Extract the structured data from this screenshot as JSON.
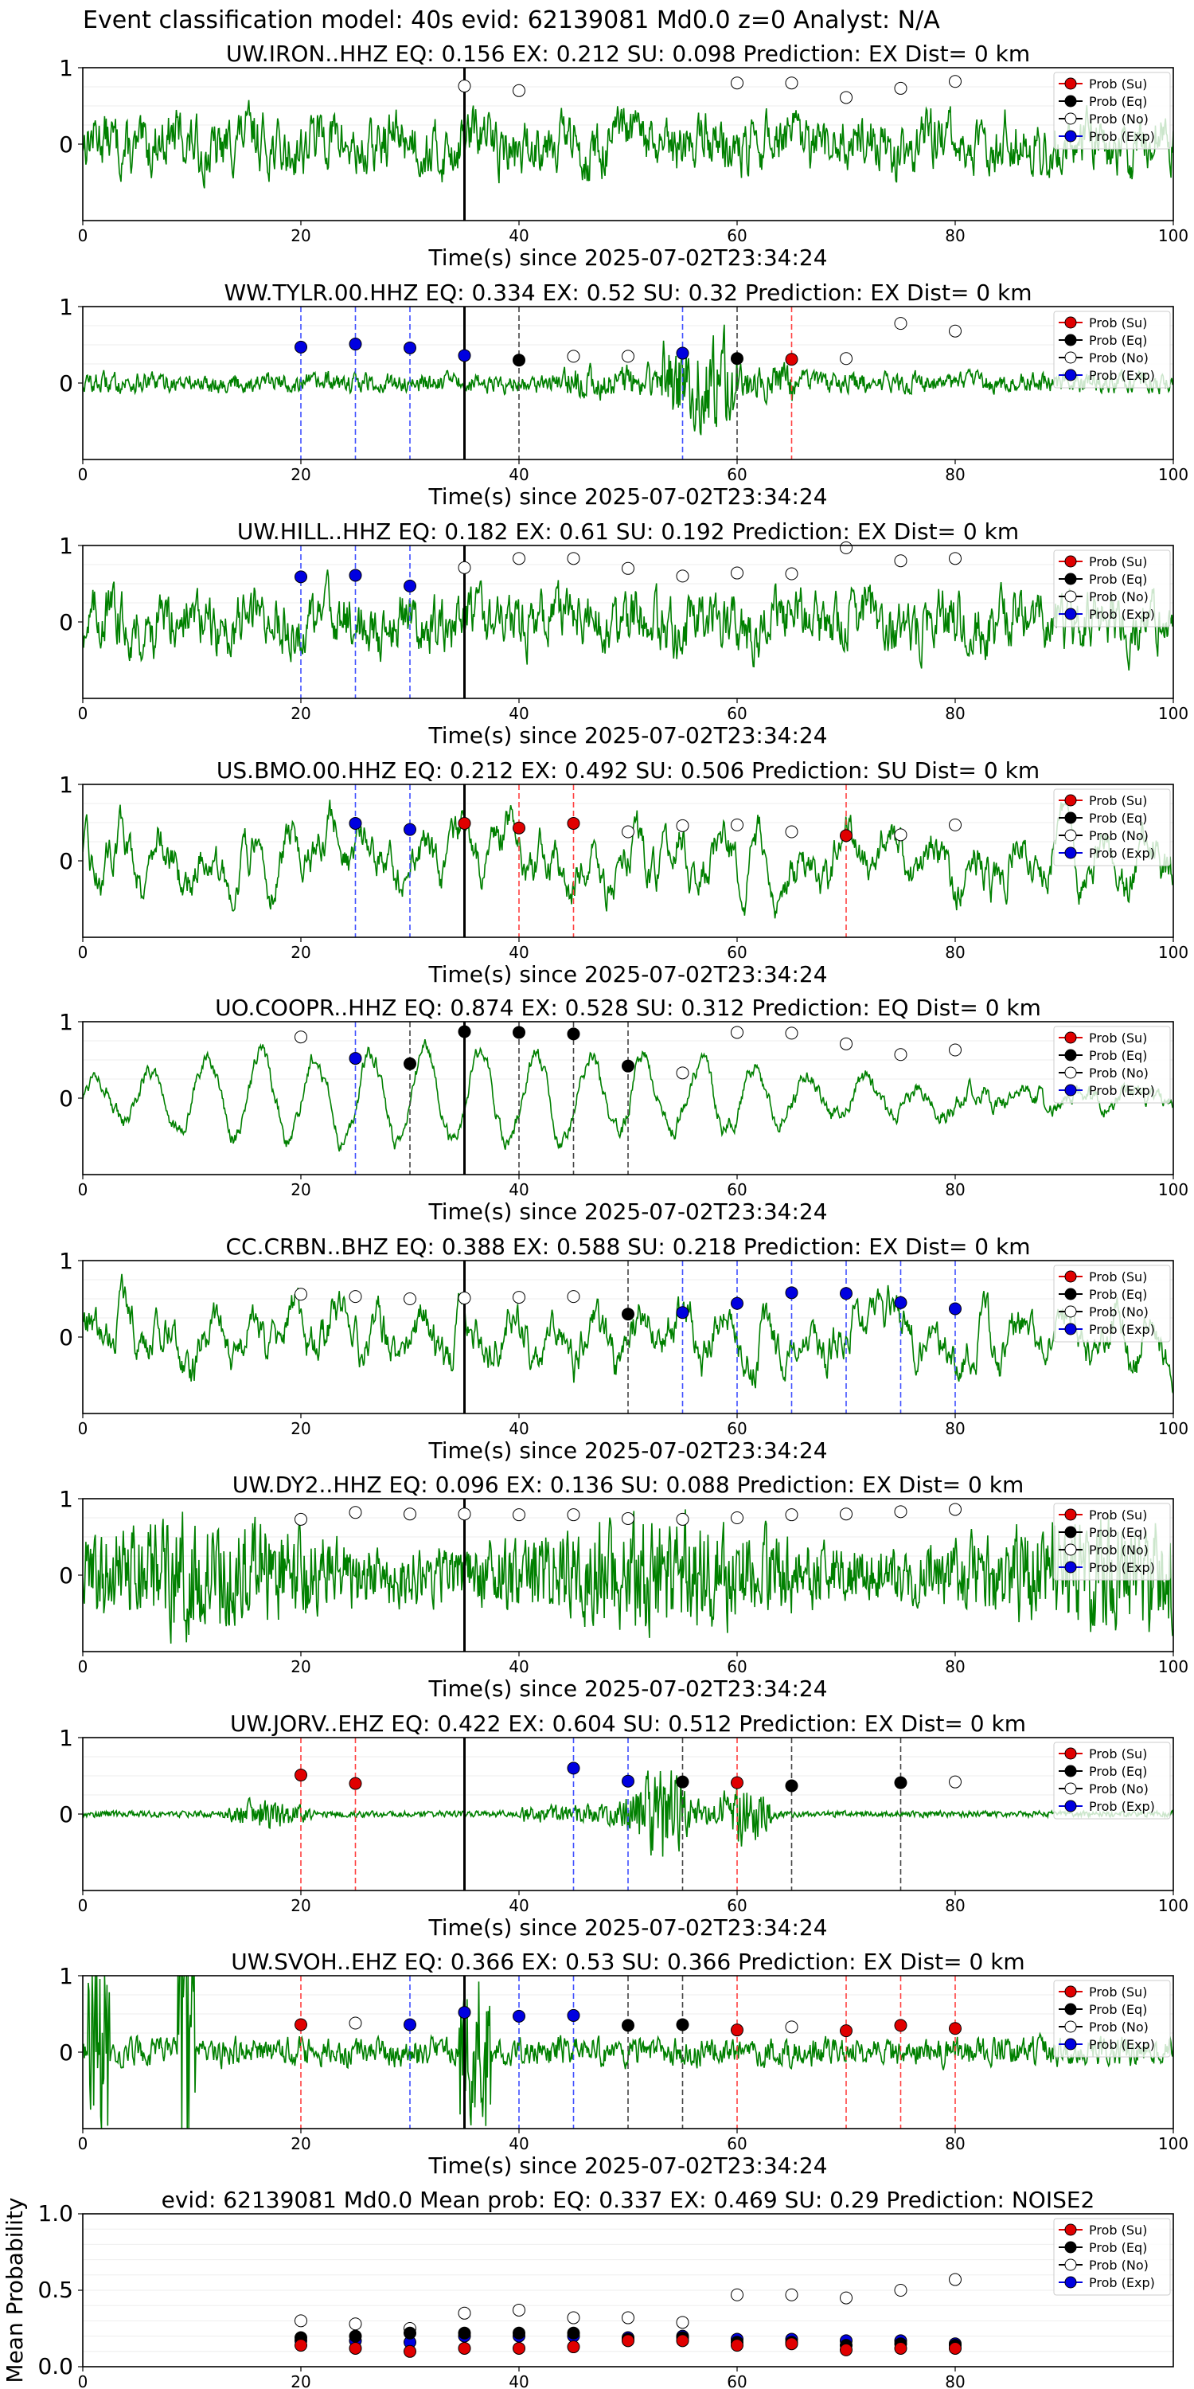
{
  "header": {
    "title": "Event classification model: 40s evid: 62139081 Md0.0 z=0 Analyst: N/A"
  },
  "colors": {
    "trace": "#008000",
    "su": "#e00000",
    "eq": "#000000",
    "no": "#ffffff",
    "exp": "#0000e0",
    "spine": "#000000"
  },
  "legend_labels": [
    "Prob (Su)",
    "Prob (Eq)",
    "Prob (No)",
    "Prob (Exp)"
  ],
  "chart_data": [
    {
      "type": "line",
      "title": "UW.IRON..HHZ   EQ: 0.156  EX: 0.212  SU: 0.098   Prediction: EX    Dist= 0 km",
      "xlabel": "Time(s) since 2025-07-02T23:34:24",
      "ylabel": "",
      "xlim": [
        0,
        100
      ],
      "ylim": [
        -1,
        1
      ],
      "x_ticks": [
        "0",
        "20",
        "40",
        "60",
        "80",
        "100"
      ],
      "y_ticks": [
        "0",
        "1"
      ],
      "legend_position": "top-right",
      "grid": "horizontal",
      "event_line": 35,
      "waveform_style": "noisy",
      "points": [
        {
          "t": 35,
          "cls": "no",
          "y": 0.76
        },
        {
          "t": 40,
          "cls": "no",
          "y": 0.7
        },
        {
          "t": 60,
          "cls": "no",
          "y": 0.8
        },
        {
          "t": 65,
          "cls": "no",
          "y": 0.8
        },
        {
          "t": 70,
          "cls": "no",
          "y": 0.61
        },
        {
          "t": 75,
          "cls": "no",
          "y": 0.73
        },
        {
          "t": 80,
          "cls": "no",
          "y": 0.82
        }
      ]
    },
    {
      "type": "line",
      "title": "WW.TYLR.00.HHZ   EQ: 0.334  EX: 0.52  SU: 0.32   Prediction: EX    Dist= 0 km",
      "xlabel": "Time(s) since 2025-07-02T23:34:24",
      "ylabel": "",
      "xlim": [
        0,
        100
      ],
      "ylim": [
        -1,
        1
      ],
      "x_ticks": [
        "0",
        "20",
        "40",
        "60",
        "80",
        "100"
      ],
      "y_ticks": [
        "0",
        "1"
      ],
      "legend_position": "top-right",
      "grid": "horizontal",
      "event_line": 35,
      "waveform_style": "burst",
      "points": [
        {
          "t": 20,
          "cls": "exp",
          "y": 0.47
        },
        {
          "t": 25,
          "cls": "exp",
          "y": 0.51
        },
        {
          "t": 30,
          "cls": "exp",
          "y": 0.46
        },
        {
          "t": 35,
          "cls": "exp",
          "y": 0.36
        },
        {
          "t": 40,
          "cls": "eq",
          "y": 0.3
        },
        {
          "t": 45,
          "cls": "no",
          "y": 0.35
        },
        {
          "t": 50,
          "cls": "no",
          "y": 0.35
        },
        {
          "t": 55,
          "cls": "exp",
          "y": 0.39
        },
        {
          "t": 60,
          "cls": "eq",
          "y": 0.32
        },
        {
          "t": 65,
          "cls": "su",
          "y": 0.31
        },
        {
          "t": 70,
          "cls": "no",
          "y": 0.32
        },
        {
          "t": 75,
          "cls": "no",
          "y": 0.78
        },
        {
          "t": 80,
          "cls": "no",
          "y": 0.68
        }
      ]
    },
    {
      "type": "line",
      "title": "UW.HILL..HHZ   EQ: 0.182  EX: 0.61  SU: 0.192   Prediction: EX    Dist= 0 km",
      "xlabel": "Time(s) since 2025-07-02T23:34:24",
      "ylabel": "",
      "xlim": [
        0,
        100
      ],
      "ylim": [
        -1,
        1
      ],
      "x_ticks": [
        "0",
        "20",
        "40",
        "60",
        "80",
        "100"
      ],
      "y_ticks": [
        "0",
        "1"
      ],
      "legend_position": "top-right",
      "grid": "horizontal",
      "event_line": 35,
      "waveform_style": "noisy",
      "points": [
        {
          "t": 20,
          "cls": "exp",
          "y": 0.59
        },
        {
          "t": 25,
          "cls": "exp",
          "y": 0.61
        },
        {
          "t": 30,
          "cls": "exp",
          "y": 0.47
        },
        {
          "t": 35,
          "cls": "no",
          "y": 0.71
        },
        {
          "t": 40,
          "cls": "no",
          "y": 0.83
        },
        {
          "t": 45,
          "cls": "no",
          "y": 0.83
        },
        {
          "t": 50,
          "cls": "no",
          "y": 0.7
        },
        {
          "t": 55,
          "cls": "no",
          "y": 0.6
        },
        {
          "t": 60,
          "cls": "no",
          "y": 0.64
        },
        {
          "t": 65,
          "cls": "no",
          "y": 0.63
        },
        {
          "t": 70,
          "cls": "no",
          "y": 0.97
        },
        {
          "t": 75,
          "cls": "no",
          "y": 0.8
        },
        {
          "t": 80,
          "cls": "no",
          "y": 0.83
        }
      ]
    },
    {
      "type": "line",
      "title": "US.BMO.00.HHZ   EQ: 0.212  EX: 0.492  SU: 0.506   Prediction: SU    Dist= 0 km",
      "xlabel": "Time(s) since 2025-07-02T23:34:24",
      "ylabel": "",
      "xlim": [
        0,
        100
      ],
      "ylim": [
        -1,
        1
      ],
      "x_ticks": [
        "0",
        "20",
        "40",
        "60",
        "80",
        "100"
      ],
      "y_ticks": [
        "0",
        "1"
      ],
      "legend_position": "top-right",
      "grid": "horizontal",
      "event_line": 35,
      "waveform_style": "wavy",
      "points": [
        {
          "t": 25,
          "cls": "exp",
          "y": 0.49
        },
        {
          "t": 30,
          "cls": "exp",
          "y": 0.41
        },
        {
          "t": 35,
          "cls": "su",
          "y": 0.49
        },
        {
          "t": 40,
          "cls": "su",
          "y": 0.43
        },
        {
          "t": 45,
          "cls": "su",
          "y": 0.49
        },
        {
          "t": 50,
          "cls": "no",
          "y": 0.38
        },
        {
          "t": 55,
          "cls": "no",
          "y": 0.46
        },
        {
          "t": 60,
          "cls": "no",
          "y": 0.47
        },
        {
          "t": 65,
          "cls": "no",
          "y": 0.38
        },
        {
          "t": 70,
          "cls": "su",
          "y": 0.33
        },
        {
          "t": 75,
          "cls": "no",
          "y": 0.34
        },
        {
          "t": 80,
          "cls": "no",
          "y": 0.47
        }
      ]
    },
    {
      "type": "line",
      "title": "UO.COOPR..HHZ   EQ: 0.874  EX: 0.528  SU: 0.312   Prediction: EQ    Dist= 0 km",
      "xlabel": "Time(s) since 2025-07-02T23:34:24",
      "ylabel": "",
      "xlim": [
        0,
        100
      ],
      "ylim": [
        -1,
        1
      ],
      "x_ticks": [
        "0",
        "20",
        "40",
        "60",
        "80",
        "100"
      ],
      "y_ticks": [
        "0",
        "1"
      ],
      "legend_position": "top-right",
      "grid": "horizontal",
      "event_line": 35,
      "waveform_style": "oscillating",
      "points": [
        {
          "t": 20,
          "cls": "no",
          "y": 0.8
        },
        {
          "t": 25,
          "cls": "exp",
          "y": 0.52
        },
        {
          "t": 30,
          "cls": "eq",
          "y": 0.45
        },
        {
          "t": 35,
          "cls": "eq",
          "y": 0.87
        },
        {
          "t": 40,
          "cls": "eq",
          "y": 0.86
        },
        {
          "t": 45,
          "cls": "eq",
          "y": 0.84
        },
        {
          "t": 50,
          "cls": "eq",
          "y": 0.42
        },
        {
          "t": 55,
          "cls": "no",
          "y": 0.33
        },
        {
          "t": 60,
          "cls": "no",
          "y": 0.86
        },
        {
          "t": 65,
          "cls": "no",
          "y": 0.85
        },
        {
          "t": 70,
          "cls": "no",
          "y": 0.71
        },
        {
          "t": 75,
          "cls": "no",
          "y": 0.57
        },
        {
          "t": 80,
          "cls": "no",
          "y": 0.63
        }
      ]
    },
    {
      "type": "line",
      "title": "CC.CRBN..BHZ   EQ: 0.388  EX: 0.588  SU: 0.218   Prediction: EX    Dist= 0 km",
      "xlabel": "Time(s) since 2025-07-02T23:34:24",
      "ylabel": "",
      "xlim": [
        0,
        100
      ],
      "ylim": [
        -1,
        1
      ],
      "x_ticks": [
        "0",
        "20",
        "40",
        "60",
        "80",
        "100"
      ],
      "y_ticks": [
        "0",
        "1"
      ],
      "legend_position": "top-right",
      "grid": "horizontal",
      "event_line": 35,
      "waveform_style": "wavy",
      "points": [
        {
          "t": 20,
          "cls": "no",
          "y": 0.56
        },
        {
          "t": 25,
          "cls": "no",
          "y": 0.53
        },
        {
          "t": 30,
          "cls": "no",
          "y": 0.5
        },
        {
          "t": 35,
          "cls": "no",
          "y": 0.51
        },
        {
          "t": 40,
          "cls": "no",
          "y": 0.52
        },
        {
          "t": 45,
          "cls": "no",
          "y": 0.53
        },
        {
          "t": 50,
          "cls": "eq",
          "y": 0.3
        },
        {
          "t": 55,
          "cls": "exp",
          "y": 0.32
        },
        {
          "t": 60,
          "cls": "exp",
          "y": 0.44
        },
        {
          "t": 65,
          "cls": "exp",
          "y": 0.58
        },
        {
          "t": 70,
          "cls": "exp",
          "y": 0.57
        },
        {
          "t": 75,
          "cls": "exp",
          "y": 0.45
        },
        {
          "t": 80,
          "cls": "exp",
          "y": 0.37
        }
      ]
    },
    {
      "type": "line",
      "title": "UW.DY2..HHZ   EQ: 0.096  EX: 0.136  SU: 0.088   Prediction: EX    Dist= 0 km",
      "xlabel": "Time(s) since 2025-07-02T23:34:24",
      "ylabel": "",
      "xlim": [
        0,
        100
      ],
      "ylim": [
        -1,
        1
      ],
      "x_ticks": [
        "0",
        "20",
        "40",
        "60",
        "80",
        "100"
      ],
      "y_ticks": [
        "0",
        "1"
      ],
      "legend_position": "top-right",
      "grid": "horizontal",
      "event_line": 35,
      "waveform_style": "dense",
      "points": [
        {
          "t": 20,
          "cls": "no",
          "y": 0.73
        },
        {
          "t": 25,
          "cls": "no",
          "y": 0.82
        },
        {
          "t": 30,
          "cls": "no",
          "y": 0.8
        },
        {
          "t": 35,
          "cls": "no",
          "y": 0.8
        },
        {
          "t": 40,
          "cls": "no",
          "y": 0.79
        },
        {
          "t": 45,
          "cls": "no",
          "y": 0.79
        },
        {
          "t": 50,
          "cls": "no",
          "y": 0.74
        },
        {
          "t": 55,
          "cls": "no",
          "y": 0.73
        },
        {
          "t": 60,
          "cls": "no",
          "y": 0.75
        },
        {
          "t": 65,
          "cls": "no",
          "y": 0.79
        },
        {
          "t": 70,
          "cls": "no",
          "y": 0.8
        },
        {
          "t": 75,
          "cls": "no",
          "y": 0.83
        },
        {
          "t": 80,
          "cls": "no",
          "y": 0.86
        }
      ]
    },
    {
      "type": "line",
      "title": "UW.JORV..EHZ   EQ: 0.422  EX: 0.604  SU: 0.512   Prediction: EX    Dist= 0 km",
      "xlabel": "Time(s) since 2025-07-02T23:34:24",
      "ylabel": "",
      "xlim": [
        0,
        100
      ],
      "ylim": [
        -1,
        1
      ],
      "x_ticks": [
        "0",
        "20",
        "40",
        "60",
        "80",
        "100"
      ],
      "y_ticks": [
        "0",
        "1"
      ],
      "legend_position": "top-right",
      "grid": "horizontal",
      "event_line": 35,
      "waveform_style": "quiet",
      "points": [
        {
          "t": 20,
          "cls": "su",
          "y": 0.51
        },
        {
          "t": 25,
          "cls": "su",
          "y": 0.4
        },
        {
          "t": 45,
          "cls": "exp",
          "y": 0.6
        },
        {
          "t": 50,
          "cls": "exp",
          "y": 0.43
        },
        {
          "t": 55,
          "cls": "eq",
          "y": 0.42
        },
        {
          "t": 60,
          "cls": "su",
          "y": 0.41
        },
        {
          "t": 65,
          "cls": "eq",
          "y": 0.37
        },
        {
          "t": 75,
          "cls": "eq",
          "y": 0.41
        },
        {
          "t": 80,
          "cls": "no",
          "y": 0.42
        }
      ]
    },
    {
      "type": "line",
      "title": "UW.SVOH..EHZ   EQ: 0.366  EX: 0.53  SU: 0.366   Prediction: EX    Dist= 0 km",
      "xlabel": "Time(s) since 2025-07-02T23:34:24",
      "ylabel": "",
      "xlim": [
        0,
        100
      ],
      "ylim": [
        -1,
        1
      ],
      "x_ticks": [
        "0",
        "20",
        "40",
        "60",
        "80",
        "100"
      ],
      "y_ticks": [
        "0",
        "1"
      ],
      "legend_position": "top-right",
      "grid": "horizontal",
      "event_line": 35,
      "waveform_style": "spiky",
      "points": [
        {
          "t": 20,
          "cls": "su",
          "y": 0.36
        },
        {
          "t": 25,
          "cls": "no",
          "y": 0.38
        },
        {
          "t": 30,
          "cls": "exp",
          "y": 0.36
        },
        {
          "t": 35,
          "cls": "exp",
          "y": 0.52
        },
        {
          "t": 40,
          "cls": "exp",
          "y": 0.47
        },
        {
          "t": 45,
          "cls": "exp",
          "y": 0.48
        },
        {
          "t": 50,
          "cls": "eq",
          "y": 0.35
        },
        {
          "t": 55,
          "cls": "eq",
          "y": 0.36
        },
        {
          "t": 60,
          "cls": "su",
          "y": 0.29
        },
        {
          "t": 65,
          "cls": "no",
          "y": 0.33
        },
        {
          "t": 70,
          "cls": "su",
          "y": 0.28
        },
        {
          "t": 75,
          "cls": "su",
          "y": 0.35
        },
        {
          "t": 80,
          "cls": "su",
          "y": 0.31
        }
      ]
    },
    {
      "type": "scatter",
      "title": "evid: 62139081  Md0.0   Mean prob:   EQ: 0.337  EX: 0.469  SU: 0.29   Prediction: NOISE2",
      "xlabel": "",
      "ylabel": "Mean Probability",
      "xlim": [
        0,
        100
      ],
      "ylim": [
        0,
        1
      ],
      "x_ticks": [
        "0",
        "20",
        "40",
        "60",
        "80"
      ],
      "y_ticks": [
        "0.0",
        "0.5",
        "1.0"
      ],
      "legend_position": "top-right",
      "grid": "horizontal",
      "mean": {
        "t": [
          20,
          25,
          30,
          35,
          40,
          45,
          50,
          55,
          60,
          65,
          70,
          75,
          80
        ],
        "no": [
          0.3,
          0.28,
          0.25,
          0.35,
          0.37,
          0.32,
          0.32,
          0.29,
          0.47,
          0.47,
          0.45,
          0.5,
          0.57
        ],
        "exp": [
          0.17,
          0.17,
          0.16,
          0.2,
          0.2,
          0.2,
          0.19,
          0.2,
          0.18,
          0.18,
          0.17,
          0.17,
          0.15
        ],
        "eq": [
          0.19,
          0.2,
          0.22,
          0.22,
          0.22,
          0.22,
          0.18,
          0.19,
          0.16,
          0.16,
          0.14,
          0.15,
          0.14
        ],
        "su": [
          0.14,
          0.12,
          0.1,
          0.12,
          0.12,
          0.13,
          0.17,
          0.17,
          0.14,
          0.15,
          0.11,
          0.12,
          0.12
        ]
      }
    }
  ]
}
